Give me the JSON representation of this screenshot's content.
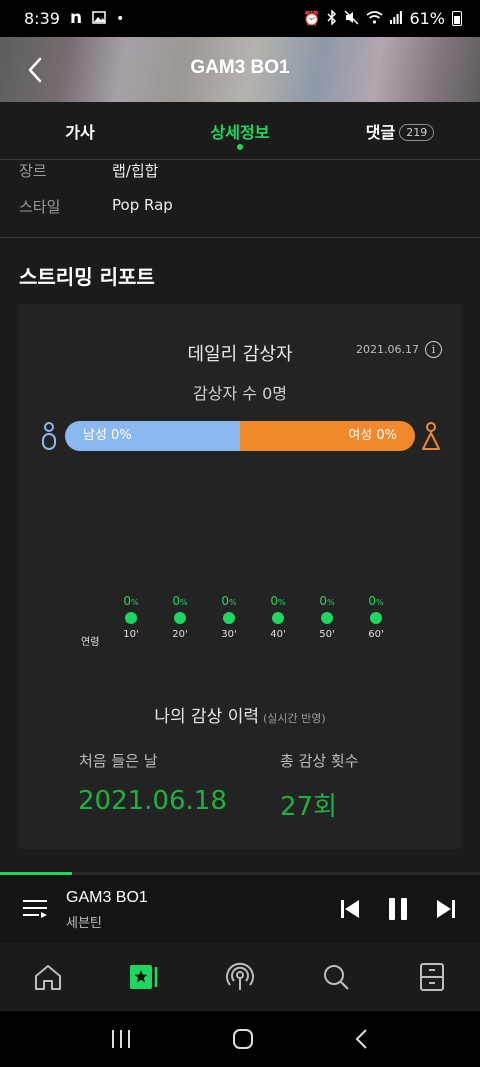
{
  "status_bar": {
    "time": "8:39",
    "notification_icons": [
      "n-icon",
      "image-icon",
      "dot-icon"
    ],
    "system_icons": [
      "alarm-icon",
      "bluetooth-icon",
      "mute-icon",
      "wifi-icon",
      "signal-icon"
    ],
    "battery": "61%"
  },
  "header": {
    "title": "GAM3 BO1"
  },
  "tabs": [
    {
      "label": "가사"
    },
    {
      "label": "상세정보",
      "active": true
    },
    {
      "label": "댓글",
      "count": "219"
    }
  ],
  "info": {
    "rows": [
      {
        "label": "장르",
        "value": "랩/힙합"
      },
      {
        "label": "스타일",
        "value": "Pop Rap"
      }
    ]
  },
  "streaming_report": {
    "section_title": "스트리밍 리포트",
    "daily_title": "데일리 감상자",
    "date": "2021.06.17",
    "listener_count": "감상자 수 0명",
    "gender": {
      "male_label": "남성 0%",
      "female_label": "여성 0%",
      "male_fraction": 0.5,
      "colors": {
        "male": "#8cb8f0",
        "female": "#f0892a"
      }
    },
    "age": {
      "title": "연령",
      "unit": "%",
      "groups": [
        {
          "label": "10'",
          "value": "0"
        },
        {
          "label": "20'",
          "value": "0"
        },
        {
          "label": "30'",
          "value": "0"
        },
        {
          "label": "40'",
          "value": "0"
        },
        {
          "label": "50'",
          "value": "0"
        },
        {
          "label": "60'",
          "value": "0"
        }
      ]
    },
    "history": {
      "title": "나의 감상 이력",
      "subtitle": "(실시간 반영)",
      "first_label": "처음 들은 날",
      "first_value": "2021.06.18",
      "total_label": "총 감상 횟수",
      "total_value": "27회"
    }
  },
  "player": {
    "title": "GAM3 BO1",
    "artist": "세븐틴",
    "progress": 0.15,
    "accent": "#1ed760"
  },
  "bottom_nav": [
    "home-icon",
    "my-music-icon",
    "podcast-icon",
    "search-icon",
    "drawer-icon"
  ],
  "system_nav": [
    "recents-icon",
    "home-button-icon",
    "back-icon"
  ]
}
